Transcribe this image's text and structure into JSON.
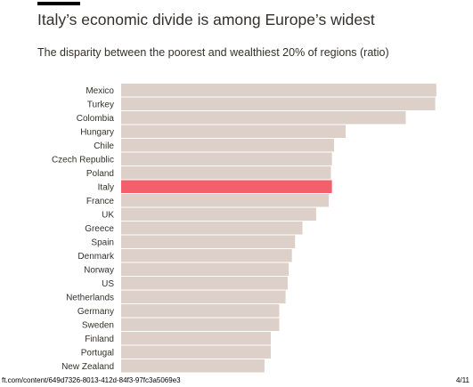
{
  "header": {
    "title": "Italy’s economic divide is among Europe’s widest",
    "subtitle": "The disparity between the poorest and wealthiest 20% of regions (ratio)"
  },
  "footer": {
    "url": "ft.com/content/649d7326-8013-412d-84f3-97fc3a5069e3",
    "page": "4/11"
  },
  "colors": {
    "bar": "#ddd0c8",
    "highlight": "#f45f6c",
    "label": "#33302e"
  },
  "chart_data": {
    "type": "bar",
    "orientation": "horizontal",
    "title": "Italy’s economic divide is among Europe’s widest",
    "subtitle": "The disparity between the poorest and wealthiest 20% of regions (ratio)",
    "categories": [
      "Mexico",
      "Turkey",
      "Colombia",
      "Hungary",
      "Chile",
      "Czech Republic",
      "Poland",
      "Italy",
      "France",
      "UK",
      "Greece",
      "Spain",
      "Denmark",
      "Norway",
      "US",
      "Netherlands",
      "Germany",
      "Sweden",
      "Finland",
      "Portugal",
      "New Zealand"
    ],
    "values": [
      2.99,
      2.98,
      2.7,
      2.13,
      2.02,
      2.0,
      1.99,
      2.0,
      1.97,
      1.85,
      1.72,
      1.65,
      1.62,
      1.59,
      1.58,
      1.56,
      1.5,
      1.5,
      1.42,
      1.42,
      1.36
    ],
    "highlight": "Italy",
    "xlim": [
      0,
      3
    ],
    "xlabel": "",
    "ylabel": "",
    "grid": false,
    "legend": "none"
  }
}
